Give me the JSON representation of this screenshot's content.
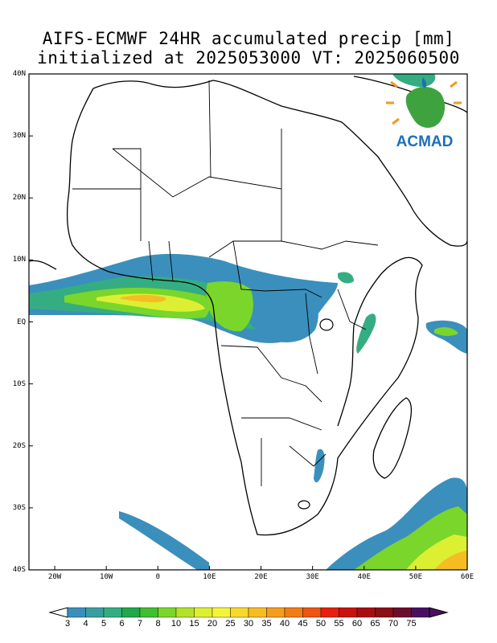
{
  "title_line1": "AIFS-ECMWF 24HR accumulated precip [mm]",
  "title_line2": "initialized at 2025053000 VT: 2025060500",
  "logo_text": "ACMAD",
  "lat_labels": [
    "40N",
    "30N",
    "20N",
    "10N",
    "EQ",
    "10S",
    "20S",
    "30S",
    "40S"
  ],
  "lon_labels": [
    "20W",
    "10W",
    "0",
    "10E",
    "20E",
    "30E",
    "40E",
    "50E",
    "60E"
  ],
  "colorbar": {
    "labels": [
      "3",
      "4",
      "5",
      "6",
      "7",
      "8",
      "10",
      "15",
      "20",
      "25",
      "30",
      "35",
      "40",
      "45",
      "50",
      "55",
      "60",
      "65",
      "70",
      "75"
    ],
    "colors": [
      "#3b8fbd",
      "#3a9ea0",
      "#35ad82",
      "#20a84a",
      "#3fbf31",
      "#7ad62a",
      "#b2e22a",
      "#dcef33",
      "#f4f43a",
      "#f7d92c",
      "#f6bd23",
      "#f59d1c",
      "#f27c16",
      "#ee5412",
      "#e81e10",
      "#c9120e",
      "#a80e10",
      "#8a0f16",
      "#6b0e2c",
      "#4a1060"
    ]
  },
  "map": {
    "extent": {
      "lon": [
        -25,
        60
      ],
      "lat": [
        -40,
        40
      ]
    }
  }
}
